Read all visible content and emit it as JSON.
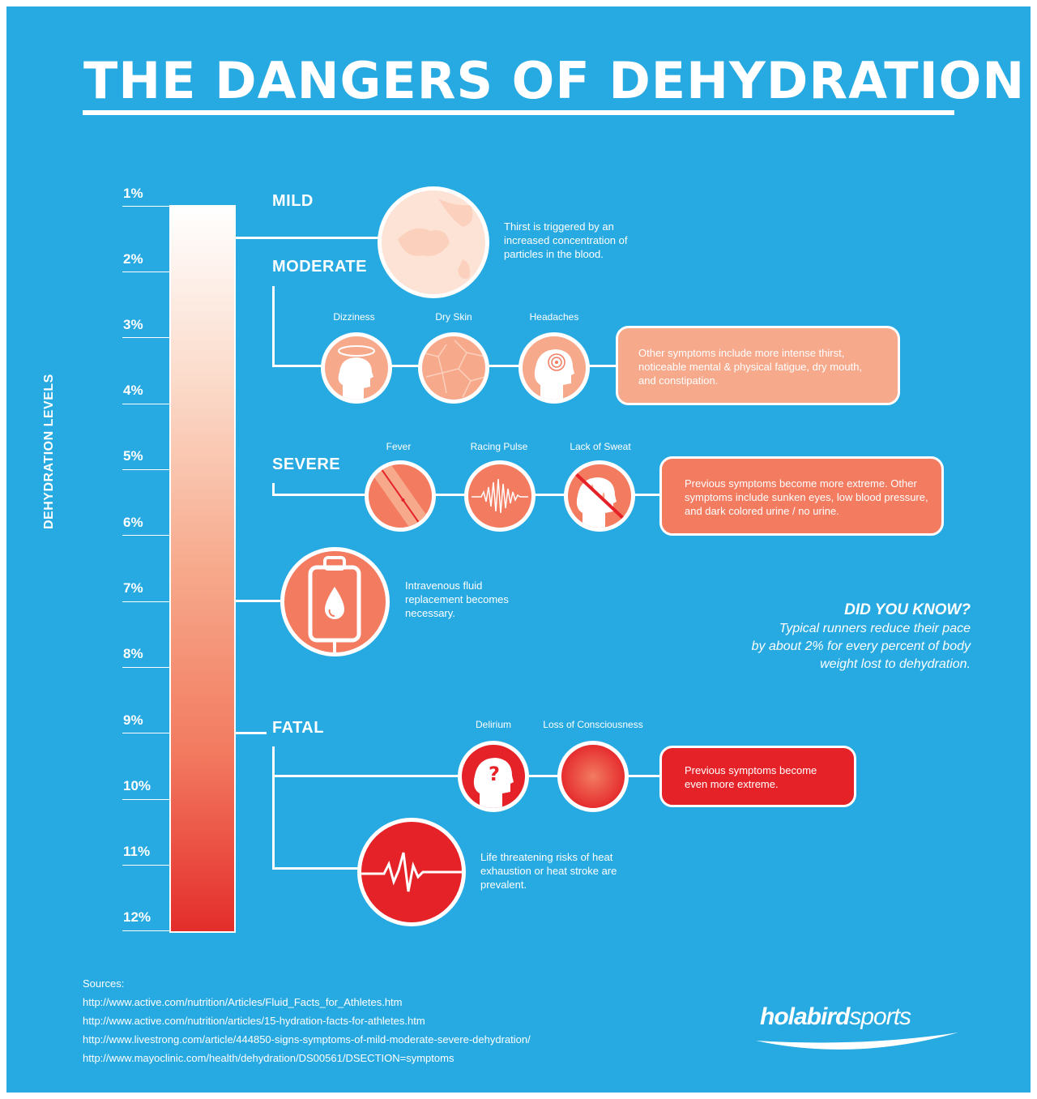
{
  "title": "THE DANGERS OF DEHYDRATION",
  "axis_label": "DEHYDRATION LEVELS",
  "ticks": [
    "1%",
    "2%",
    "3%",
    "4%",
    "5%",
    "6%",
    "7%",
    "8%",
    "9%",
    "10%",
    "11%",
    "12%"
  ],
  "levels": {
    "mild": {
      "label": "MILD",
      "description": "Thirst is triggered by an increased concentration of particles in the blood."
    },
    "moderate": {
      "label": "MODERATE",
      "symptoms": [
        "Dizziness",
        "Dry Skin",
        "Headaches"
      ],
      "box": "Other symptoms include more intense thirst, noticeable mental & physical fatigue, dry mouth, and constipation."
    },
    "severe": {
      "label": "SEVERE",
      "symptoms": [
        "Fever",
        "Racing Pulse",
        "Lack of Sweat"
      ],
      "box": "Previous symptoms become more extreme. Other symptoms include sunken eyes, low blood pressure, and dark colored urine / no urine."
    },
    "iv": {
      "description": "Intravenous fluid replacement becomes necessary."
    },
    "fatal": {
      "label": "FATAL",
      "symptoms": [
        "Delirium",
        "Loss of Consciousness"
      ],
      "box": "Previous symptoms become even more extreme.",
      "description": "Life threatening risks of heat exhaustion or heat stroke are prevalent."
    }
  },
  "did_you_know": {
    "title": "DID YOU KNOW?",
    "line1": "Typical runners reduce their pace",
    "line2": "by about 2% for every percent of body",
    "line3": "weight lost to dehydration."
  },
  "sources": {
    "heading": "Sources:",
    "urls": [
      "http://www.active.com/nutrition/Articles/Fluid_Facts_for_Athletes.htm",
      "http://www.active.com/nutrition/articles/15-hydration-facts-for-athletes.htm",
      "http://www.livestrong.com/article/444850-signs-symptoms-of-mild-moderate-severe-dehydration/",
      "http://www.mayoclinic.com/health/dehydration/DS00561/DSECTION=symptoms"
    ]
  },
  "logo": {
    "part1": "holabird",
    "part2": "sports"
  },
  "colors": {
    "background": "#27a9e1",
    "mild": "#fde3d6",
    "moderate": "#f7a98c",
    "severe": "#f27b60",
    "fatal": "#e42228"
  }
}
